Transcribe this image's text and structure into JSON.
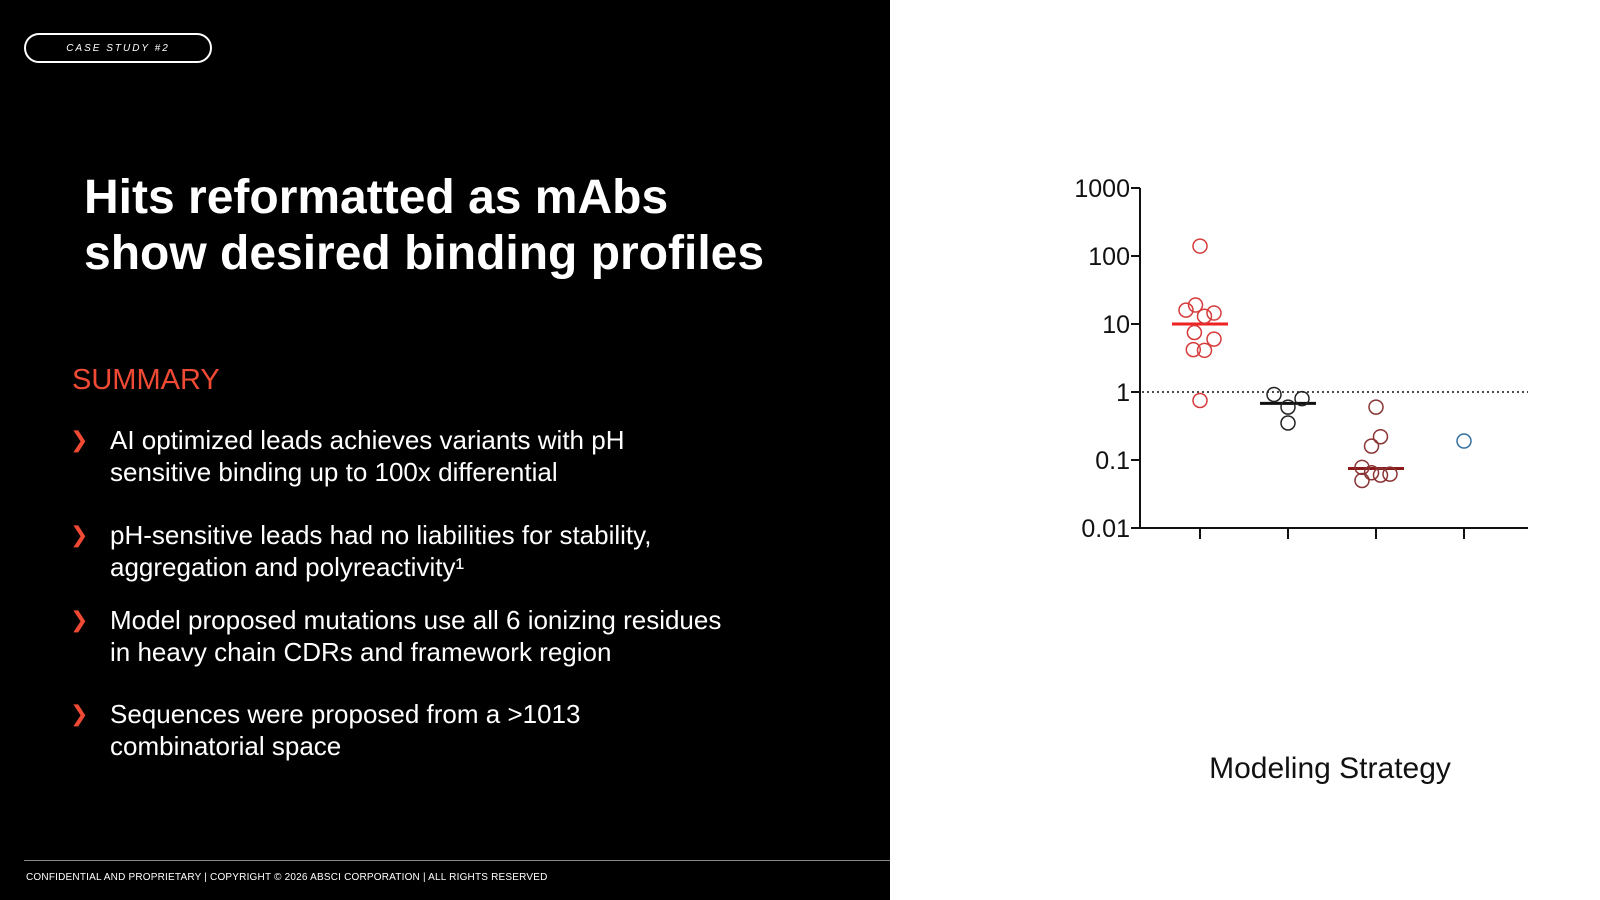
{
  "slide": {
    "badge": "CASE STUDY #2",
    "title_line1": "Hits reformatted as mAbs",
    "title_line2": "show desired binding profiles",
    "summary_heading": "SUMMARY",
    "bullet_glyph": "❯",
    "bullets": [
      {
        "line1": "AI optimized leads achieves variants with pH",
        "line2": "sensitive binding up to 100x differential"
      },
      {
        "line1": "pH-sensitive leads had no liabilities for stability,",
        "line2": "aggregation and polyreactivity¹"
      },
      {
        "line1": "Model proposed mutations use all 6 ionizing residues",
        "line2": "in heavy chain CDRs and framework region"
      },
      {
        "line1": "Sequences were proposed from a >1013",
        "line2": "combinatorial space"
      }
    ],
    "footer": "CONFIDENTIAL AND PROPRIETARY | COPYRIGHT © 2026 ABSCI CORPORATION | ALL RIGHTS RESERVED",
    "colors": {
      "accent": "#f04a34",
      "background": "#000000",
      "text": "#ffffff"
    }
  },
  "chart_data": {
    "type": "scatter",
    "xlabel": "Modeling Strategy",
    "ylabel": "",
    "yscale": "log",
    "ylim": [
      0.01,
      1000
    ],
    "yticks": [
      {
        "value": 0.01,
        "label": "0.01"
      },
      {
        "value": 0.1,
        "label": "0.1"
      },
      {
        "value": 1,
        "label": "1"
      },
      {
        "value": 10,
        "label": "10"
      },
      {
        "value": 100,
        "label": "100"
      },
      {
        "value": 1000,
        "label": "1000"
      }
    ],
    "reference_line": {
      "value": 1,
      "style": "dotted"
    },
    "groups": [
      {
        "color": "#d63a3a",
        "median_color": "#ee2222",
        "median": 10,
        "points": [
          {
            "offset": 0,
            "y": 140
          },
          {
            "offset": -0.25,
            "y": 16
          },
          {
            "offset": -0.08,
            "y": 19
          },
          {
            "offset": 0.08,
            "y": 13
          },
          {
            "offset": 0.25,
            "y": 14.5
          },
          {
            "offset": -0.1,
            "y": 7.5
          },
          {
            "offset": 0.25,
            "y": 6
          },
          {
            "offset": -0.12,
            "y": 4.2
          },
          {
            "offset": 0.08,
            "y": 4.1
          },
          {
            "offset": 0,
            "y": 0.75
          }
        ]
      },
      {
        "color": "#222222",
        "median_color": "#111111",
        "median": 0.68,
        "points": [
          {
            "offset": -0.25,
            "y": 0.92
          },
          {
            "offset": 0,
            "y": 0.6
          },
          {
            "offset": 0.25,
            "y": 0.8
          },
          {
            "offset": 0,
            "y": 0.35
          }
        ]
      },
      {
        "color": "#8a3434",
        "median_color": "#8b1a1a",
        "median": 0.075,
        "points": [
          {
            "offset": 0,
            "y": 0.6
          },
          {
            "offset": 0.08,
            "y": 0.22
          },
          {
            "offset": -0.08,
            "y": 0.16
          },
          {
            "offset": -0.25,
            "y": 0.078
          },
          {
            "offset": -0.08,
            "y": 0.065
          },
          {
            "offset": 0.08,
            "y": 0.06
          },
          {
            "offset": 0.25,
            "y": 0.062
          },
          {
            "offset": -0.25,
            "y": 0.05
          }
        ]
      },
      {
        "color": "#2f6f9f",
        "median_color": "#2f6f9f",
        "median": null,
        "points": [
          {
            "offset": 0,
            "y": 0.19
          }
        ]
      }
    ]
  }
}
